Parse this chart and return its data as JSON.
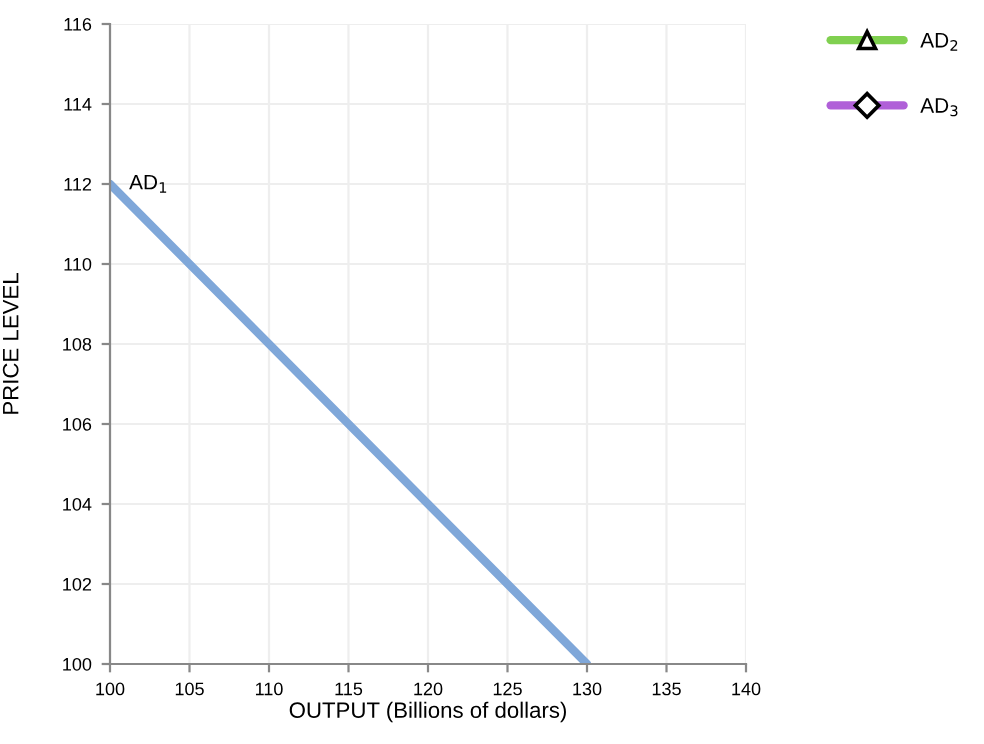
{
  "chart_data": {
    "type": "line",
    "xlabel": "OUTPUT (Billions of dollars)",
    "ylabel": "PRICE LEVEL",
    "xlim": [
      100,
      140
    ],
    "xticks": [
      100,
      105,
      110,
      115,
      120,
      125,
      130,
      135,
      140
    ],
    "ylim": [
      100,
      116
    ],
    "yticks": [
      100,
      102,
      104,
      106,
      108,
      110,
      112,
      114,
      116
    ],
    "grid": true,
    "legend": "right",
    "series": [
      {
        "name": "AD$_{1}$",
        "color": "#7fa7d9",
        "x": [
          100,
          130
        ],
        "values": [
          112,
          100
        ]
      },
      {
        "name": "AD$_{2}$",
        "color": "#80d050",
        "marker": "triangle"
      },
      {
        "name": "AD$_{3}$",
        "color": "#b060d8",
        "marker": "diamond"
      }
    ]
  }
}
